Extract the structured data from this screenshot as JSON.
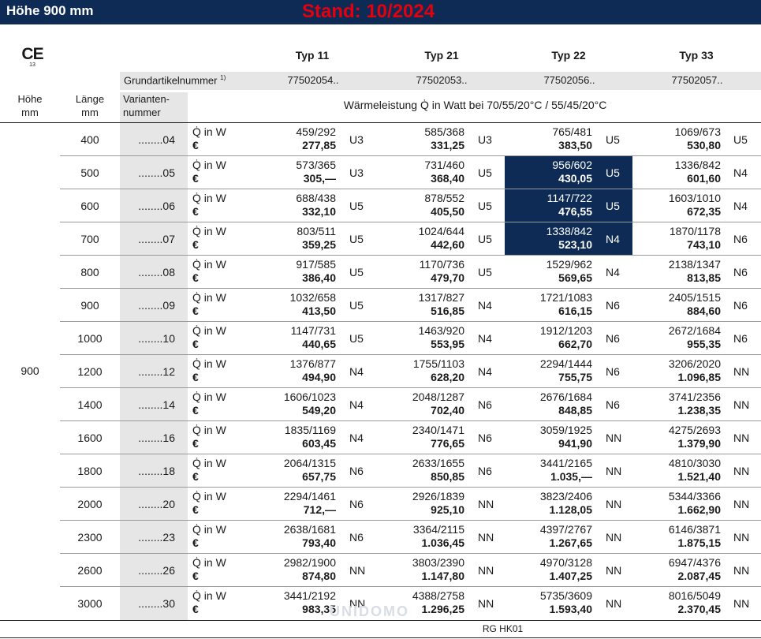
{
  "header": {
    "title": "Höhe 900 mm",
    "stand": "Stand: 10/2024"
  },
  "ce_mark": {
    "symbol": "CE",
    "number": "13"
  },
  "types": [
    "Typ 11",
    "Typ 21",
    "Typ 22",
    "Typ 33"
  ],
  "grundartikel": {
    "label": "Grundartikelnummer",
    "footnote": "1)",
    "values": [
      "77502054..",
      "77502053..",
      "77502056..",
      "77502057.."
    ]
  },
  "columns": {
    "hoehe": [
      "Höhe",
      "mm"
    ],
    "laenge": [
      "Länge",
      "mm"
    ],
    "variante": [
      "Varianten-",
      "nummer"
    ],
    "waermeleistung": "Wärmeleistung Q̇ in Watt bei 70/55/20°C / 55/45/20°C"
  },
  "row_labels": {
    "q": "Q̇ in W",
    "euro": "€"
  },
  "hoehe_value": "900",
  "rows": [
    {
      "len": "400",
      "var": "........04",
      "cells": [
        {
          "q": "459/292",
          "p": "277,85",
          "c": "U3"
        },
        {
          "q": "585/368",
          "p": "331,25",
          "c": "U3"
        },
        {
          "q": "765/481",
          "p": "383,50",
          "c": "U5"
        },
        {
          "q": "1069/673",
          "p": "530,80",
          "c": "U5"
        }
      ]
    },
    {
      "len": "500",
      "var": "........05",
      "cells": [
        {
          "q": "573/365",
          "p": "305,—",
          "c": "U3"
        },
        {
          "q": "731/460",
          "p": "368,40",
          "c": "U5"
        },
        {
          "q": "956/602",
          "p": "430,05",
          "c": "U5",
          "hl": true
        },
        {
          "q": "1336/842",
          "p": "601,60",
          "c": "N4"
        }
      ]
    },
    {
      "len": "600",
      "var": "........06",
      "cells": [
        {
          "q": "688/438",
          "p": "332,10",
          "c": "U5"
        },
        {
          "q": "878/552",
          "p": "405,50",
          "c": "U5"
        },
        {
          "q": "1147/722",
          "p": "476,55",
          "c": "U5",
          "hl": true
        },
        {
          "q": "1603/1010",
          "p": "672,35",
          "c": "N4"
        }
      ]
    },
    {
      "len": "700",
      "var": "........07",
      "cells": [
        {
          "q": "803/511",
          "p": "359,25",
          "c": "U5"
        },
        {
          "q": "1024/644",
          "p": "442,60",
          "c": "U5"
        },
        {
          "q": "1338/842",
          "p": "523,10",
          "c": "N4",
          "hl": true
        },
        {
          "q": "1870/1178",
          "p": "743,10",
          "c": "N6"
        }
      ]
    },
    {
      "len": "800",
      "var": "........08",
      "cells": [
        {
          "q": "917/585",
          "p": "386,40",
          "c": "U5"
        },
        {
          "q": "1170/736",
          "p": "479,70",
          "c": "U5"
        },
        {
          "q": "1529/962",
          "p": "569,65",
          "c": "N4"
        },
        {
          "q": "2138/1347",
          "p": "813,85",
          "c": "N6"
        }
      ]
    },
    {
      "len": "900",
      "var": "........09",
      "cells": [
        {
          "q": "1032/658",
          "p": "413,50",
          "c": "U5"
        },
        {
          "q": "1317/827",
          "p": "516,85",
          "c": "N4"
        },
        {
          "q": "1721/1083",
          "p": "616,15",
          "c": "N6"
        },
        {
          "q": "2405/1515",
          "p": "884,60",
          "c": "N6"
        }
      ]
    },
    {
      "len": "1000",
      "var": "........10",
      "cells": [
        {
          "q": "1147/731",
          "p": "440,65",
          "c": "U5"
        },
        {
          "q": "1463/920",
          "p": "553,95",
          "c": "N4"
        },
        {
          "q": "1912/1203",
          "p": "662,70",
          "c": "N6"
        },
        {
          "q": "2672/1684",
          "p": "955,35",
          "c": "N6"
        }
      ]
    },
    {
      "len": "1200",
      "var": "........12",
      "cells": [
        {
          "q": "1376/877",
          "p": "494,90",
          "c": "N4"
        },
        {
          "q": "1755/1103",
          "p": "628,20",
          "c": "N4"
        },
        {
          "q": "2294/1444",
          "p": "755,75",
          "c": "N6"
        },
        {
          "q": "3206/2020",
          "p": "1.096,85",
          "c": "NN"
        }
      ]
    },
    {
      "len": "1400",
      "var": "........14",
      "cells": [
        {
          "q": "1606/1023",
          "p": "549,20",
          "c": "N4"
        },
        {
          "q": "2048/1287",
          "p": "702,40",
          "c": "N6"
        },
        {
          "q": "2676/1684",
          "p": "848,85",
          "c": "N6"
        },
        {
          "q": "3741/2356",
          "p": "1.238,35",
          "c": "NN"
        }
      ]
    },
    {
      "len": "1600",
      "var": "........16",
      "cells": [
        {
          "q": "1835/1169",
          "p": "603,45",
          "c": "N4"
        },
        {
          "q": "2340/1471",
          "p": "776,65",
          "c": "N6"
        },
        {
          "q": "3059/1925",
          "p": "941,90",
          "c": "NN"
        },
        {
          "q": "4275/2693",
          "p": "1.379,90",
          "c": "NN"
        }
      ]
    },
    {
      "len": "1800",
      "var": "........18",
      "cells": [
        {
          "q": "2064/1315",
          "p": "657,75",
          "c": "N6"
        },
        {
          "q": "2633/1655",
          "p": "850,85",
          "c": "N6"
        },
        {
          "q": "3441/2165",
          "p": "1.035,—",
          "c": "NN"
        },
        {
          "q": "4810/3030",
          "p": "1.521,40",
          "c": "NN"
        }
      ]
    },
    {
      "len": "2000",
      "var": "........20",
      "cells": [
        {
          "q": "2294/1461",
          "p": "712,—",
          "c": "N6"
        },
        {
          "q": "2926/1839",
          "p": "925,10",
          "c": "NN"
        },
        {
          "q": "3823/2406",
          "p": "1.128,05",
          "c": "NN"
        },
        {
          "q": "5344/3366",
          "p": "1.662,90",
          "c": "NN"
        }
      ]
    },
    {
      "len": "2300",
      "var": "........23",
      "cells": [
        {
          "q": "2638/1681",
          "p": "793,40",
          "c": "N6"
        },
        {
          "q": "3364/2115",
          "p": "1.036,45",
          "c": "NN"
        },
        {
          "q": "4397/2767",
          "p": "1.267,65",
          "c": "NN"
        },
        {
          "q": "6146/3871",
          "p": "1.875,15",
          "c": "NN"
        }
      ]
    },
    {
      "len": "2600",
      "var": "........26",
      "cells": [
        {
          "q": "2982/1900",
          "p": "874,80",
          "c": "NN"
        },
        {
          "q": "3803/2390",
          "p": "1.147,80",
          "c": "NN"
        },
        {
          "q": "4970/3128",
          "p": "1.407,25",
          "c": "NN"
        },
        {
          "q": "6947/4376",
          "p": "2.087,45",
          "c": "NN"
        }
      ]
    },
    {
      "len": "3000",
      "var": "........30",
      "cells": [
        {
          "q": "3441/2192",
          "p": "983,35",
          "c": "NN"
        },
        {
          "q": "4388/2758",
          "p": "1.296,25",
          "c": "NN"
        },
        {
          "q": "5735/3609",
          "p": "1.593,40",
          "c": "NN"
        },
        {
          "q": "8016/5049",
          "p": "2.370,45",
          "c": "NN"
        }
      ]
    }
  ],
  "watermark": "UNIDOMO",
  "footer": "RG HK01",
  "colors": {
    "navy": "#0d2b55",
    "red": "#e3000f",
    "grey": "#e6e6e6"
  }
}
